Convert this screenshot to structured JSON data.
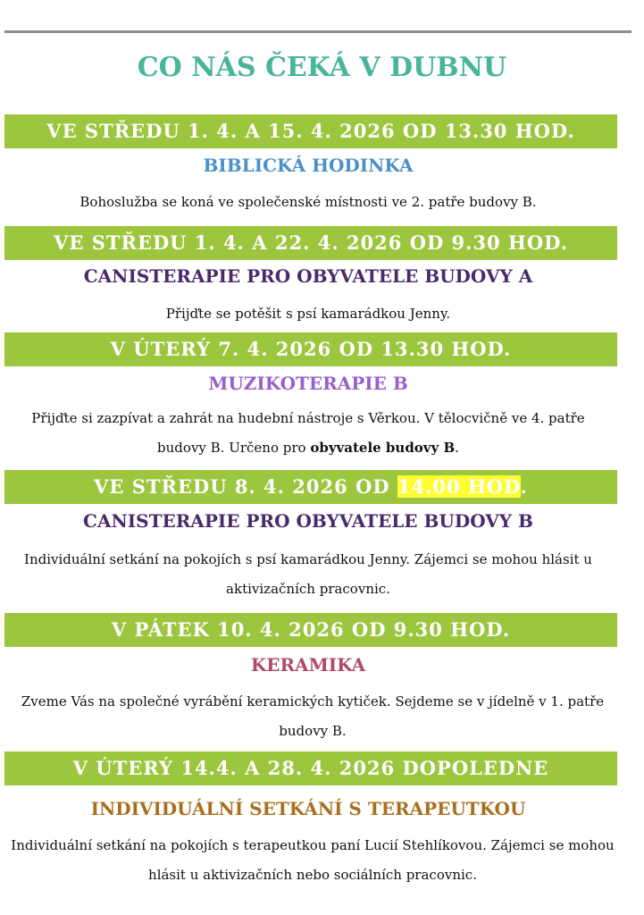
{
  "title": "CO NÁS ČEKÁ V DUBNU",
  "events": [
    {
      "date": [
        "VE STŘEDU 1. 4. A 15. 4. 2026 OD 13.30 HOD."
      ],
      "heading": "BIBLICKÁ HODINKA",
      "description": [
        "Bohoslužba se koná ve společenské místnosti ve 2. patře budovy B."
      ]
    },
    {
      "date": [
        "VE STŘEDU 1. 4. A 22. 4. 2026 OD 9.30 HOD."
      ],
      "heading": "CANISTERAPIE PRO OBYVATELE BUDOVY A",
      "description": [
        "Přijďte se potěšit s psí kamarádkou Jenny."
      ]
    },
    {
      "date": [
        "V ÚTERÝ 7. 4. 2026 OD 13.30 HOD."
      ],
      "heading": "MUZIKOTERAPIE B",
      "description": [
        "Přijďte si zazpívat a zahrát na hudební nástroje s Věrkou. V tělocvičně ve 4. patře budovy B. Určeno pro ",
        "obyvatele budovy B",
        "."
      ]
    },
    {
      "date": [
        "VE STŘEDU 8. 4. 2026 OD ",
        "14.00 HOD",
        "."
      ],
      "heading": "CANISTERAPIE PRO OBYVATELE BUDOVY B",
      "description": [
        "Individuální setkání na pokojích s psí kamarádkou Jenny. Zájemci se mohou hlásit u aktivizačních pracovnic."
      ]
    },
    {
      "date": [
        "V PÁTEK 10. 4. 2026 OD 9.30 HOD."
      ],
      "heading": "KERAMIKA",
      "description": [
        "Zveme Vás na společné vyrábění keramických kytiček. Sejdeme se v jídelně v 1. patře budovy B."
      ]
    },
    {
      "date": [
        "V ÚTERÝ 14.4. A 28. 4. 2026 DOPOLEDNE"
      ],
      "heading": "INDIVIDUÁLNÍ SETKÁNÍ S TERAPEUTKOU",
      "description": [
        "Individuální setkání na pokojích s terapeutkou paní Lucií Stehlíkovou. Zájemci se mohou hlásit u aktivizačních nebo sociálních pracovnic."
      ]
    }
  ]
}
